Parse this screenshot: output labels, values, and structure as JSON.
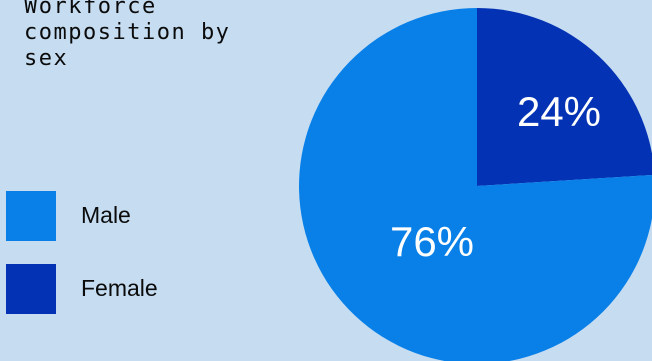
{
  "title": "Workforce composition by sex",
  "colors": {
    "background": "#c5dcf1",
    "male": "#0880e8",
    "female": "#0332b4"
  },
  "chart_data": {
    "type": "pie",
    "title": "Workforce composition by sex",
    "categories": [
      "Male",
      "Female"
    ],
    "values": [
      76,
      24
    ],
    "labels": [
      "76%",
      "24%"
    ],
    "legend": "left",
    "colors": [
      "#0880e8",
      "#0332b4"
    ]
  }
}
